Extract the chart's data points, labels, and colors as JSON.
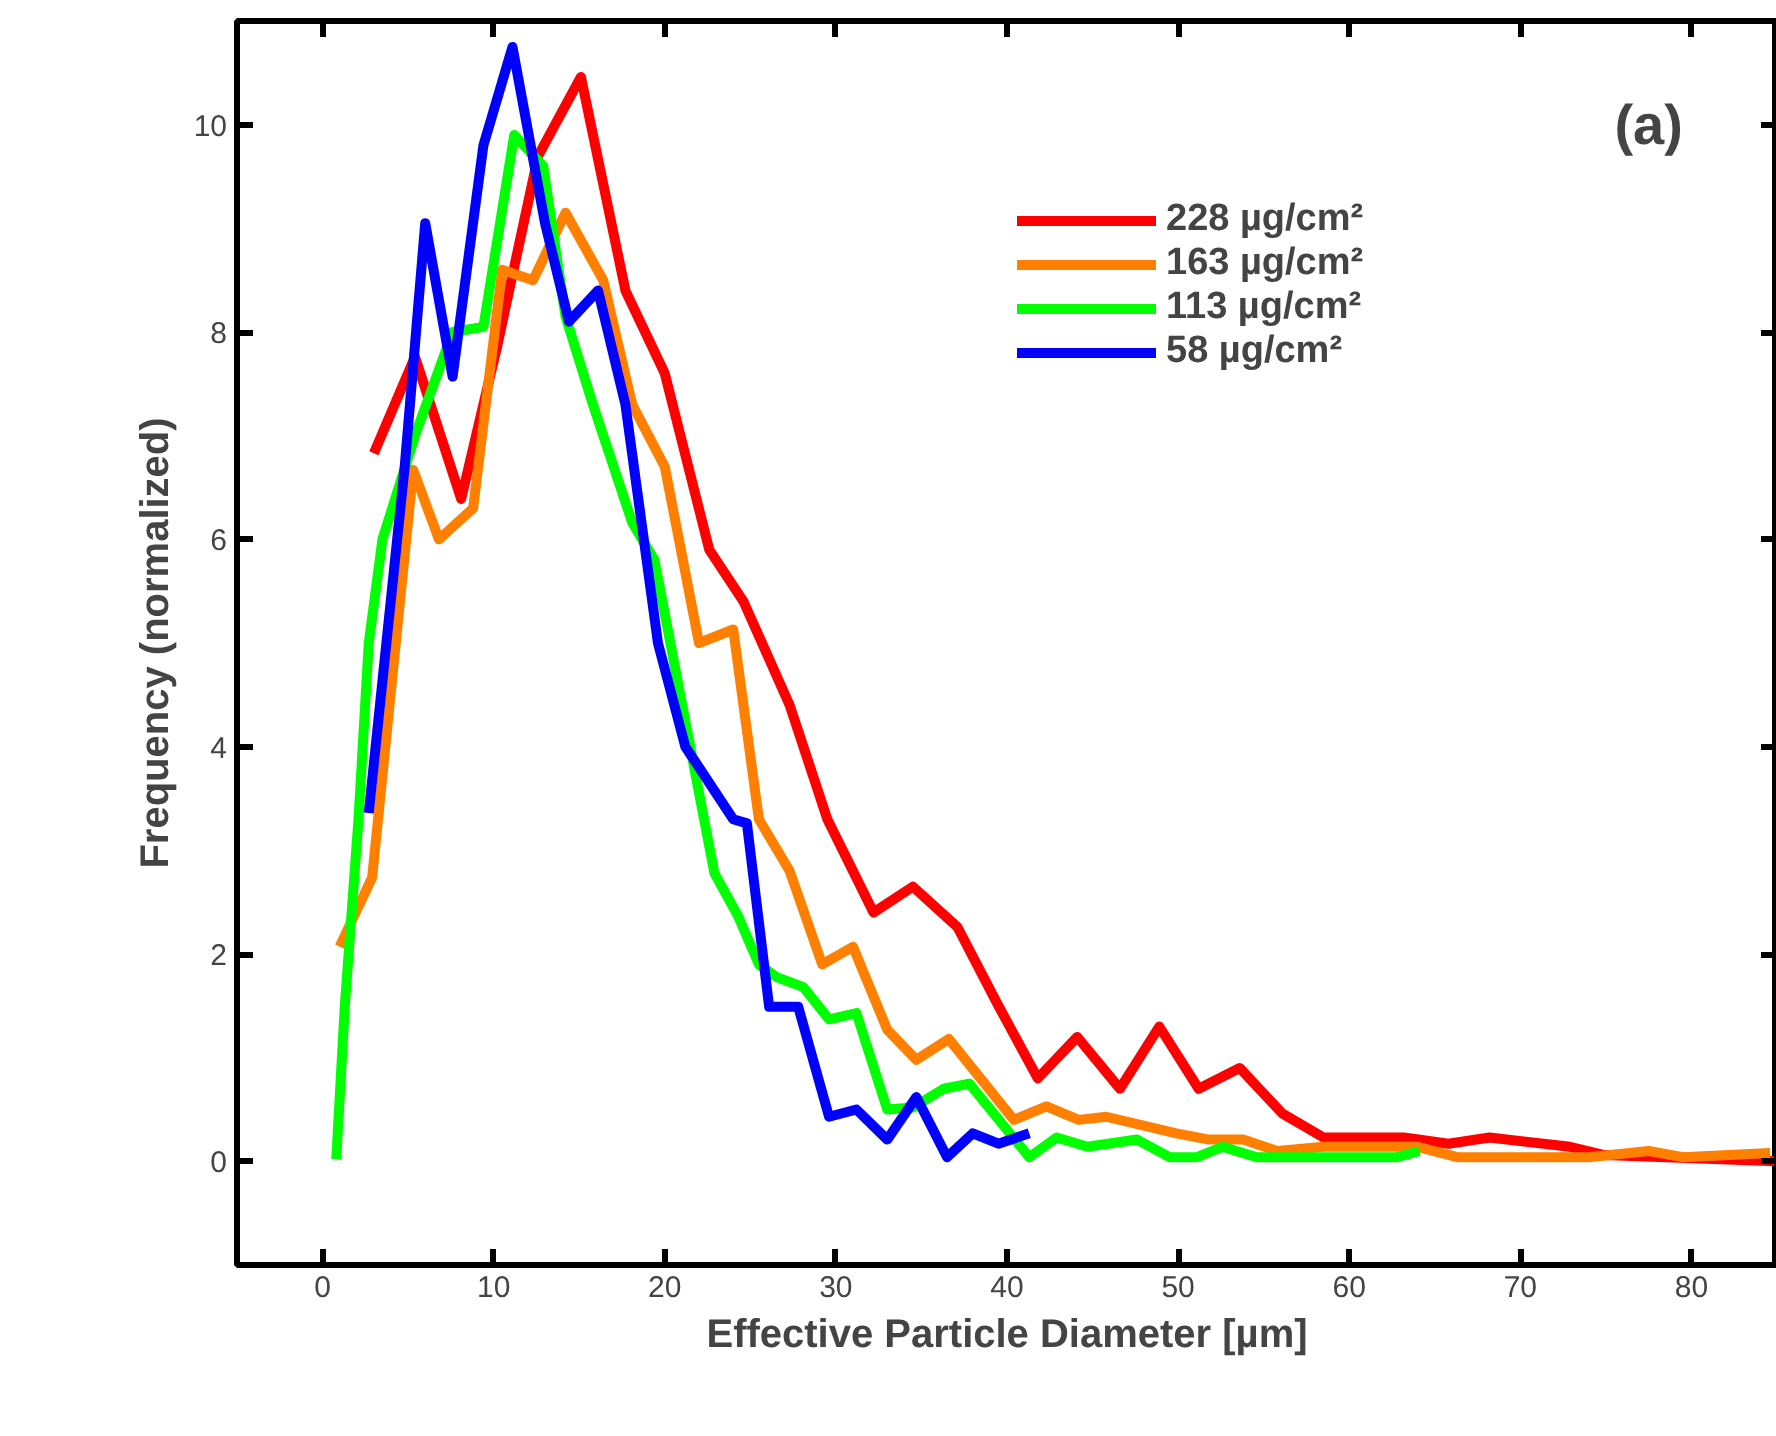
{
  "chart_data": {
    "type": "line",
    "xlabel": "Effective Particle Diameter [µm]",
    "ylabel": "Frequency (normalized)",
    "annotations": [
      "(a)"
    ],
    "xlim": [
      -5,
      85
    ],
    "xticks": [
      0,
      10,
      20,
      30,
      40,
      50,
      60,
      70,
      80
    ],
    "ylim": [
      -1,
      11
    ],
    "yticks": [
      0,
      2,
      4,
      6,
      8,
      10
    ],
    "grid": false,
    "legend": "top right",
    "marker": "none",
    "line_style": "solid",
    "series": [
      {
        "name": "228 µg/cm²",
        "color": "#ff0000",
        "x": [
          3.0,
          5.4,
          8.1,
          10.2,
          12.6,
          15.1,
          17.7,
          20.0,
          22.6,
          24.6,
          27.3,
          29.5,
          32.2,
          34.5,
          37.1,
          39.5,
          41.8,
          44.1,
          46.6,
          48.9,
          51.2,
          53.6,
          56.1,
          58.5,
          63.2,
          65.8,
          68.2,
          72.9,
          74.9,
          85.0
        ],
        "values": [
          6.83,
          7.76,
          6.39,
          7.86,
          9.7,
          10.46,
          8.4,
          7.6,
          5.9,
          5.4,
          4.4,
          3.3,
          2.4,
          2.65,
          2.26,
          1.5,
          0.8,
          1.2,
          0.7,
          1.3,
          0.7,
          0.9,
          0.46,
          0.23,
          0.23,
          0.17,
          0.23,
          0.14,
          0.06,
          0.0
        ]
      },
      {
        "name": "163 µg/cm²",
        "color": "#ff8000",
        "x": [
          1.0,
          2.9,
          5.3,
          6.8,
          8.8,
          10.5,
          12.3,
          14.2,
          16.4,
          18.1,
          20.0,
          22.0,
          24.0,
          25.5,
          27.3,
          29.2,
          31.0,
          33.0,
          34.7,
          36.6,
          40.4,
          42.3,
          44.2,
          45.8,
          49.9,
          51.8,
          53.8,
          55.8,
          58.5,
          64.0,
          66.3,
          74.0,
          77.5,
          79.5,
          84.6
        ],
        "values": [
          2.07,
          2.74,
          6.67,
          6.0,
          6.3,
          8.6,
          8.5,
          9.15,
          8.5,
          7.3,
          6.7,
          5.0,
          5.13,
          3.3,
          2.8,
          1.9,
          2.07,
          1.27,
          0.98,
          1.18,
          0.4,
          0.53,
          0.4,
          0.43,
          0.27,
          0.21,
          0.21,
          0.1,
          0.14,
          0.14,
          0.04,
          0.04,
          0.1,
          0.04,
          0.08
        ]
      },
      {
        "name": "113 µg/cm²",
        "color": "#00ff00",
        "x": [
          0.8,
          1.3,
          2.1,
          2.7,
          3.5,
          5.4,
          7.6,
          9.4,
          11.2,
          12.9,
          14.2,
          15.8,
          18.1,
          19.4,
          21.6,
          22.9,
          24.3,
          25.5,
          26.5,
          28.1,
          29.6,
          31.2,
          33.0,
          34.5,
          36.3,
          37.8,
          41.3,
          42.9,
          44.7,
          47.6,
          49.5,
          51.1,
          52.6,
          54.6,
          62.8,
          64.1
        ],
        "values": [
          0.02,
          1.5,
          3.3,
          5.0,
          6.0,
          7.0,
          8.0,
          8.05,
          9.9,
          9.6,
          8.15,
          7.3,
          6.16,
          5.8,
          3.9,
          2.78,
          2.36,
          1.9,
          1.78,
          1.68,
          1.37,
          1.43,
          0.5,
          0.52,
          0.7,
          0.75,
          0.04,
          0.23,
          0.14,
          0.21,
          0.04,
          0.04,
          0.14,
          0.04,
          0.04,
          0.1
        ]
      },
      {
        "name": "58 µg/cm²",
        "color": "#0000ff",
        "x": [
          2.7,
          4.8,
          6.0,
          7.6,
          9.4,
          11.1,
          13.0,
          14.4,
          16.1,
          17.7,
          19.6,
          21.2,
          24.0,
          24.8,
          26.1,
          27.8,
          29.6,
          31.2,
          33.0,
          34.7,
          36.5,
          38.0,
          39.5,
          41.3
        ],
        "values": [
          3.36,
          6.7,
          9.05,
          7.57,
          9.8,
          10.75,
          9.05,
          8.1,
          8.4,
          7.3,
          5.0,
          4.0,
          3.3,
          3.26,
          1.49,
          1.49,
          0.43,
          0.5,
          0.21,
          0.62,
          0.04,
          0.27,
          0.17,
          0.27
        ]
      }
    ]
  }
}
